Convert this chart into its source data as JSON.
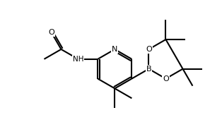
{
  "bg_color": "#ffffff",
  "line_color": "#000000",
  "line_width": 1.5,
  "figsize": [
    3.14,
    1.9
  ],
  "dpi": 100,
  "atom_labels": {
    "N": "N",
    "B": "B",
    "O1": "O",
    "O2": "O",
    "NH": "NH",
    "O_carbonyl": "O"
  }
}
